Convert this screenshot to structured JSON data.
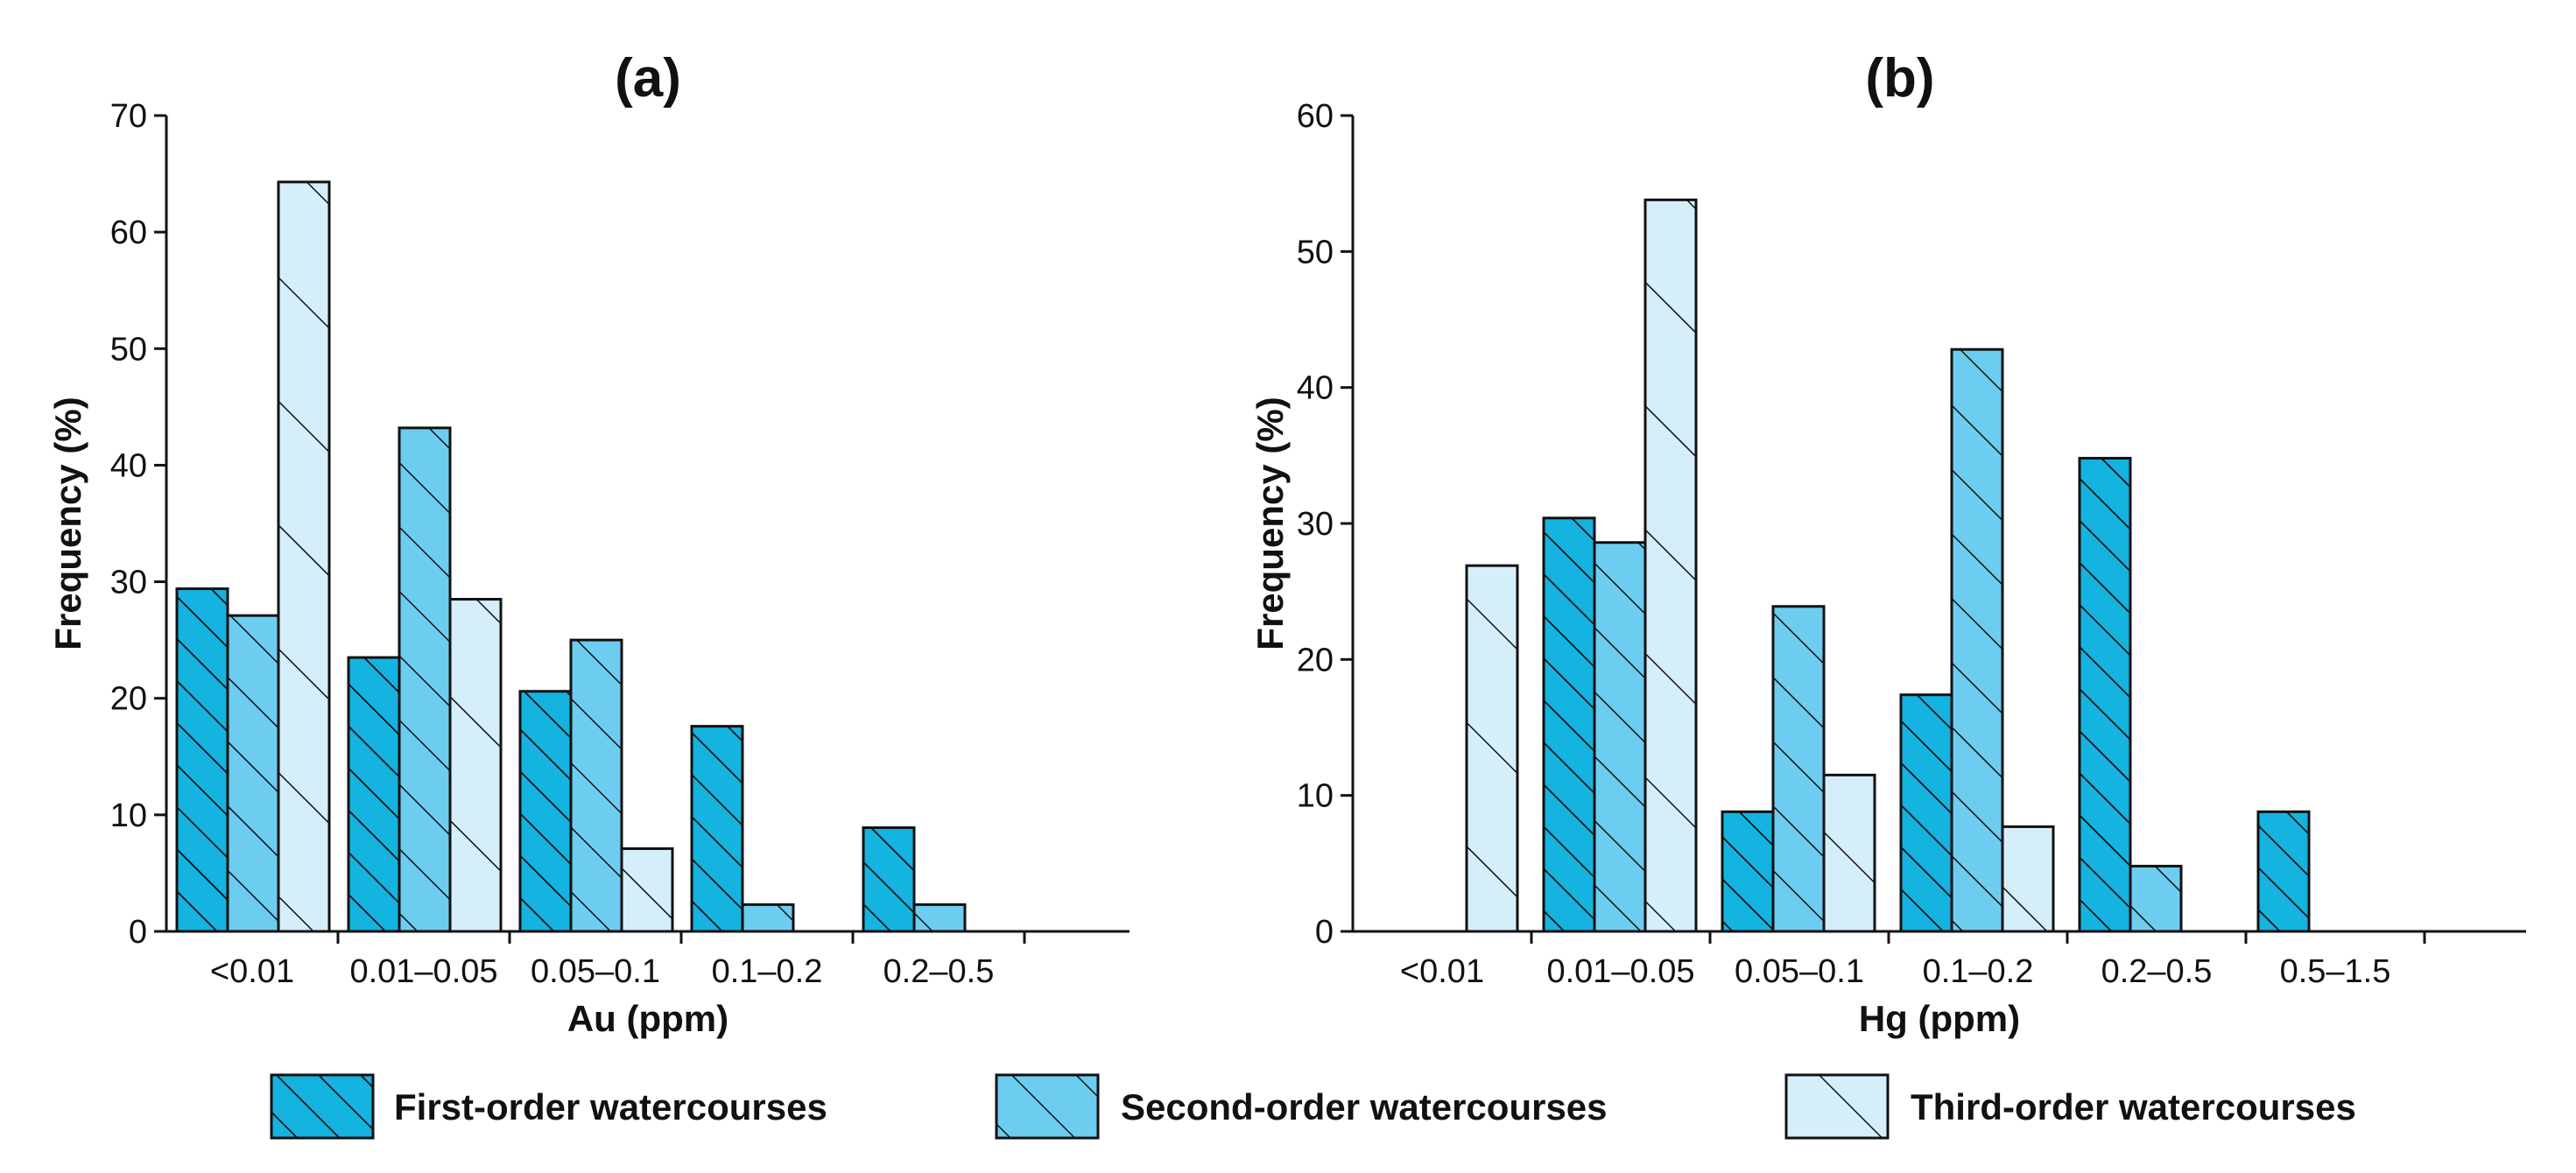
{
  "chart_data": [
    {
      "type": "bar",
      "title": "(a)",
      "xlabel": "Au (ppm)",
      "ylabel": "Frequency (%)",
      "ylim": [
        0,
        70
      ],
      "yticks": [
        0,
        10,
        20,
        30,
        40,
        50,
        60,
        70
      ],
      "grid": false,
      "categories": [
        "<0.01",
        "0.01–0.05",
        "0.05–0.1",
        "0.1–0.2",
        "0.2–0.5"
      ],
      "series": [
        {
          "name": "First-order watercourses",
          "values": [
            29.4,
            23.5,
            20.6,
            17.6,
            8.9
          ]
        },
        {
          "name": "Second-order watercourses",
          "values": [
            27.1,
            43.2,
            25.0,
            2.3,
            2.3
          ]
        },
        {
          "name": "Third-order watercourses",
          "values": [
            64.3,
            28.5,
            7.1,
            0,
            0
          ]
        }
      ]
    },
    {
      "type": "bar",
      "title": "(b)",
      "xlabel": "Hg (ppm)",
      "ylabel": "Frequency (%)",
      "ylim": [
        0,
        60
      ],
      "yticks": [
        0,
        10,
        20,
        30,
        40,
        50,
        60
      ],
      "grid": false,
      "categories": [
        "<0.01",
        "0.01–0.05",
        "0.05–0.1",
        "0.1–0.2",
        "0.2–0.5",
        "0.5–1.5"
      ],
      "series": [
        {
          "name": "First-order watercourses",
          "values": [
            0,
            30.4,
            8.8,
            17.4,
            34.8,
            8.8
          ]
        },
        {
          "name": "Second-order watercourses",
          "values": [
            0,
            28.6,
            23.9,
            42.8,
            4.8,
            0
          ]
        },
        {
          "name": "Third-order watercourses",
          "values": [
            26.9,
            53.8,
            11.5,
            7.7,
            0,
            0
          ]
        }
      ]
    }
  ],
  "legend": {
    "position": "bottom",
    "items": [
      {
        "label": "First-order watercourses",
        "color": "#14b3e0"
      },
      {
        "label": "Second-order watercourses",
        "color": "#6ccdf0"
      },
      {
        "label": "Third-order watercourses",
        "color": "#d4eefa"
      }
    ]
  }
}
